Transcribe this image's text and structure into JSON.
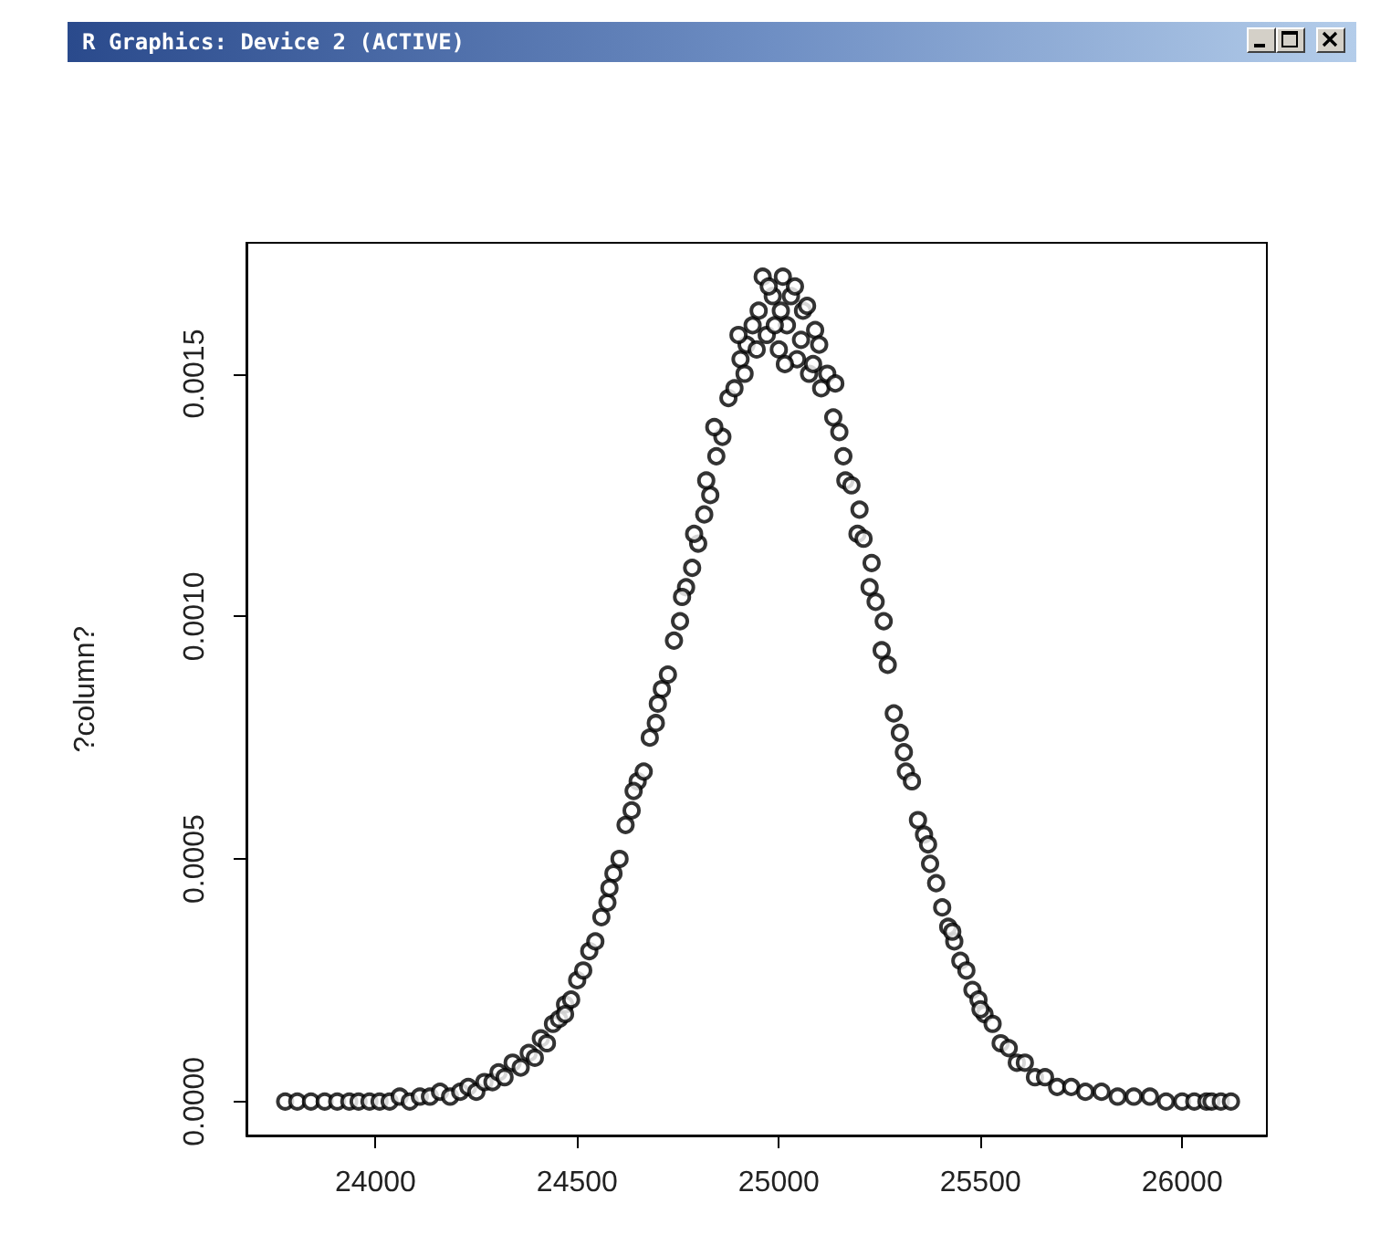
{
  "chart_data": {
    "type": "scatter",
    "title": "R Graphics: Device 2 (ACTIVE)",
    "ylabel": "?column?",
    "color": "#000000",
    "marker": "circle",
    "grid": false,
    "xlim": [
      23680,
      26210
    ],
    "xticks": [
      24000,
      24500,
      25000,
      25500,
      26000
    ],
    "ylim": [
      -7e-05,
      0.00177
    ],
    "yticks": [
      {
        "value": 0,
        "label": "0.0000"
      },
      0.0005,
      {
        "value": 0.001,
        "label": "0.0010"
      },
      0.0015
    ],
    "x": [
      23776,
      23806,
      23840,
      23874,
      23905,
      23935,
      23958,
      23985,
      24010,
      24035,
      24060,
      24085,
      24110,
      24135,
      24160,
      24185,
      24210,
      24230,
      24250,
      24270,
      24290,
      24305,
      24320,
      24340,
      24360,
      24380,
      24395,
      24410,
      24425,
      24440,
      24455,
      24470,
      24485,
      24500,
      24515,
      24530,
      24545,
      24560,
      24575,
      24590,
      24605,
      24620,
      24635,
      24650,
      24665,
      24680,
      24695,
      24710,
      24725,
      24740,
      24755,
      24770,
      24785,
      24800,
      24815,
      24830,
      24845,
      24860,
      24875,
      24890,
      24905,
      24920,
      24935,
      24950,
      24960,
      24970,
      24985,
      25000,
      25010,
      25020,
      25030,
      25045,
      25060,
      25075,
      25090,
      25105,
      25120,
      25135,
      25150,
      25165,
      25180,
      25195,
      25210,
      25225,
      25240,
      25255,
      25270,
      25285,
      25300,
      25315,
      25330,
      25345,
      25360,
      25375,
      25390,
      25405,
      25420,
      25435,
      25450,
      25465,
      25480,
      25495,
      25510,
      25530,
      25550,
      25570,
      25590,
      25610,
      25635,
      25660,
      25690,
      25725,
      25760,
      25800,
      25840,
      25880,
      25920,
      25960,
      26000,
      26030,
      26060,
      26073,
      26096,
      26121,
      24900,
      24915,
      24945,
      24975,
      24990,
      25005,
      25015,
      25040,
      25055,
      25070,
      25085,
      25100,
      24840,
      24820,
      24790,
      24760,
      24700,
      24640,
      25140,
      25160,
      25200,
      25230,
      25260,
      25310,
      25370,
      24580,
      25430,
      24470,
      25500
    ],
    "values": [
      0,
      0,
      0,
      0,
      0,
      0,
      0,
      0,
      0,
      0,
      1e-05,
      0,
      1e-05,
      1e-05,
      2e-05,
      1e-05,
      2e-05,
      3e-05,
      2e-05,
      4e-05,
      4e-05,
      6e-05,
      5e-05,
      8e-05,
      7e-05,
      0.0001,
      9e-05,
      0.00013,
      0.00012,
      0.00016,
      0.00017,
      0.0002,
      0.00021,
      0.00025,
      0.00027,
      0.00031,
      0.00033,
      0.00038,
      0.00041,
      0.00047,
      0.0005,
      0.00057,
      0.0006,
      0.00066,
      0.00068,
      0.00075,
      0.00078,
      0.00085,
      0.00088,
      0.00095,
      0.00099,
      0.00106,
      0.0011,
      0.00115,
      0.00121,
      0.00125,
      0.00133,
      0.00137,
      0.00145,
      0.00147,
      0.00153,
      0.00156,
      0.0016,
      0.00163,
      0.0017,
      0.00158,
      0.00166,
      0.00155,
      0.0017,
      0.0016,
      0.00166,
      0.00153,
      0.00163,
      0.0015,
      0.00159,
      0.00147,
      0.0015,
      0.00141,
      0.00138,
      0.00128,
      0.00127,
      0.00117,
      0.00116,
      0.00106,
      0.00103,
      0.00093,
      0.0009,
      0.0008,
      0.00076,
      0.00068,
      0.00066,
      0.00058,
      0.00055,
      0.00049,
      0.00045,
      0.0004,
      0.00036,
      0.00033,
      0.00029,
      0.00027,
      0.00023,
      0.00021,
      0.00018,
      0.00016,
      0.00012,
      0.00011,
      8e-05,
      8e-05,
      5e-05,
      5e-05,
      3e-05,
      3e-05,
      2e-05,
      2e-05,
      1e-05,
      1e-05,
      1e-05,
      0,
      0,
      0,
      0,
      0,
      0,
      0,
      0.00158,
      0.0015,
      0.00155,
      0.00168,
      0.0016,
      0.00163,
      0.00152,
      0.00168,
      0.00157,
      0.00164,
      0.00152,
      0.00156,
      0.00139,
      0.00128,
      0.00117,
      0.00104,
      0.00082,
      0.00064,
      0.00148,
      0.00133,
      0.00122,
      0.00111,
      0.00099,
      0.00072,
      0.00053,
      0.00044,
      0.00035,
      0.00018,
      0.00019
    ]
  }
}
